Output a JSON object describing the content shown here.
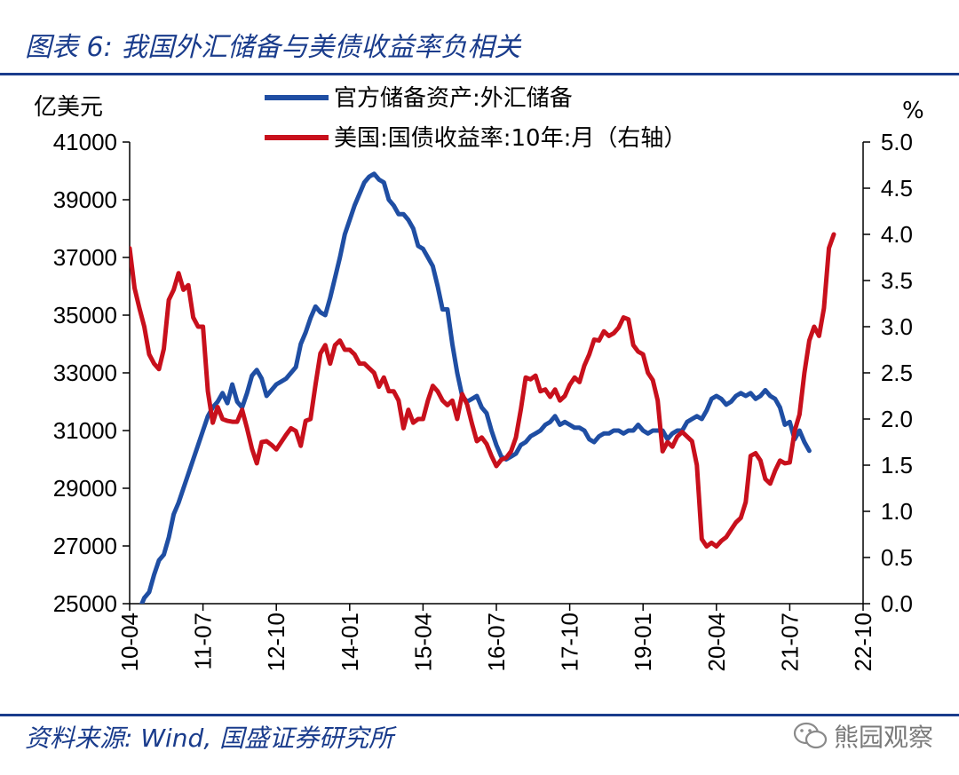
{
  "header": {
    "title": "图表 6:  我国外汇储备与美债收益率负相关"
  },
  "footer": {
    "source": "资料来源:  Wind,  国盛证券研究所",
    "watermark": "熊园观察"
  },
  "colors": {
    "reserves": "#1f4ea3",
    "yield": "#c8101c",
    "brand": "#1a3c8c"
  },
  "chart_data": {
    "type": "line",
    "title": "我国外汇储备与美债收益率负相关",
    "left_axis_label": "亿美元",
    "right_axis_label": "%",
    "left_ylim": [
      25000,
      41000
    ],
    "left_ticks": [
      25000,
      27000,
      29000,
      31000,
      33000,
      35000,
      37000,
      39000,
      41000
    ],
    "right_ylim": [
      0.0,
      5.0
    ],
    "right_ticks": [
      "0.0",
      "0.5",
      "1.0",
      "1.5",
      "2.0",
      "2.5",
      "3.0",
      "3.5",
      "4.0",
      "4.5",
      "5.0"
    ],
    "x_ticks": [
      "10-04",
      "11-07",
      "12-10",
      "14-01",
      "15-04",
      "16-07",
      "17-10",
      "19-01",
      "20-04",
      "21-07",
      "22-10"
    ],
    "x_range_months": [
      0,
      150
    ],
    "series": [
      {
        "name": "官方储备资产:外汇储备",
        "axis": "left",
        "color": "#1f4ea3",
        "points": [
          [
            0,
            24470
          ],
          [
            1,
            24540
          ],
          [
            2,
            24800
          ],
          [
            3,
            25200
          ],
          [
            4,
            25400
          ],
          [
            5,
            26000
          ],
          [
            6,
            26500
          ],
          [
            7,
            26700
          ],
          [
            8,
            27300
          ],
          [
            9,
            28100
          ],
          [
            10,
            28500
          ],
          [
            11,
            29000
          ],
          [
            12,
            29500
          ],
          [
            13,
            30000
          ],
          [
            14,
            30500
          ],
          [
            15,
            31000
          ],
          [
            16,
            31500
          ],
          [
            17,
            31800
          ],
          [
            18,
            32000
          ],
          [
            19,
            32300
          ],
          [
            20,
            31950
          ],
          [
            21,
            32600
          ],
          [
            22,
            32000
          ],
          [
            23,
            31800
          ],
          [
            24,
            32300
          ],
          [
            25,
            32900
          ],
          [
            26,
            33100
          ],
          [
            27,
            32800
          ],
          [
            28,
            32200
          ],
          [
            29,
            32400
          ],
          [
            30,
            32600
          ],
          [
            31,
            32700
          ],
          [
            32,
            32800
          ],
          [
            33,
            33000
          ],
          [
            34,
            33200
          ],
          [
            35,
            34000
          ],
          [
            36,
            34400
          ],
          [
            37,
            34900
          ],
          [
            38,
            35300
          ],
          [
            39,
            35100
          ],
          [
            40,
            35000
          ],
          [
            41,
            35600
          ],
          [
            42,
            36300
          ],
          [
            43,
            37000
          ],
          [
            44,
            37800
          ],
          [
            45,
            38300
          ],
          [
            46,
            38800
          ],
          [
            47,
            39200
          ],
          [
            48,
            39600
          ],
          [
            49,
            39800
          ],
          [
            50,
            39900
          ],
          [
            51,
            39700
          ],
          [
            52,
            39600
          ],
          [
            53,
            39000
          ],
          [
            54,
            38800
          ],
          [
            55,
            38500
          ],
          [
            56,
            38500
          ],
          [
            57,
            38300
          ],
          [
            58,
            38000
          ],
          [
            59,
            37400
          ],
          [
            60,
            37300
          ],
          [
            61,
            37000
          ],
          [
            62,
            36700
          ],
          [
            63,
            36000
          ],
          [
            64,
            35200
          ],
          [
            65,
            35200
          ],
          [
            66,
            34000
          ],
          [
            67,
            33000
          ],
          [
            68,
            32200
          ],
          [
            69,
            32000
          ],
          [
            70,
            32100
          ],
          [
            71,
            32200
          ],
          [
            72,
            31800
          ],
          [
            73,
            31600
          ],
          [
            74,
            31000
          ],
          [
            75,
            30500
          ],
          [
            76,
            30100
          ],
          [
            77,
            30000
          ],
          [
            78,
            30100
          ],
          [
            79,
            30200
          ],
          [
            80,
            30500
          ],
          [
            81,
            30600
          ],
          [
            82,
            30800
          ],
          [
            83,
            30900
          ],
          [
            84,
            31000
          ],
          [
            85,
            31200
          ],
          [
            86,
            31300
          ],
          [
            87,
            31500
          ],
          [
            88,
            31200
          ],
          [
            89,
            31300
          ],
          [
            90,
            31200
          ],
          [
            91,
            31100
          ],
          [
            92,
            31100
          ],
          [
            93,
            31000
          ],
          [
            94,
            30700
          ],
          [
            95,
            30600
          ],
          [
            96,
            30800
          ],
          [
            97,
            30900
          ],
          [
            98,
            30900
          ],
          [
            99,
            31000
          ],
          [
            100,
            31000
          ],
          [
            101,
            30900
          ],
          [
            102,
            31000
          ],
          [
            103,
            31000
          ],
          [
            104,
            31200
          ],
          [
            105,
            31000
          ],
          [
            106,
            30900
          ],
          [
            107,
            31000
          ],
          [
            108,
            31000
          ],
          [
            109,
            31000
          ],
          [
            110,
            30700
          ],
          [
            111,
            30900
          ],
          [
            112,
            31000
          ],
          [
            113,
            31000
          ],
          [
            114,
            31300
          ],
          [
            115,
            31400
          ],
          [
            116,
            31500
          ],
          [
            117,
            31400
          ],
          [
            118,
            31700
          ],
          [
            119,
            32100
          ],
          [
            120,
            32200
          ],
          [
            121,
            32100
          ],
          [
            122,
            31900
          ],
          [
            123,
            32000
          ],
          [
            124,
            32200
          ],
          [
            125,
            32300
          ],
          [
            126,
            32200
          ],
          [
            127,
            32300
          ],
          [
            128,
            32100
          ],
          [
            129,
            32200
          ],
          [
            130,
            32400
          ],
          [
            131,
            32200
          ],
          [
            132,
            32100
          ],
          [
            133,
            31800
          ],
          [
            134,
            31200
          ],
          [
            135,
            31300
          ],
          [
            136,
            30700
          ],
          [
            137,
            31000
          ],
          [
            138,
            30600
          ],
          [
            139,
            30300
          ]
        ]
      },
      {
        "name": "美国:国债收益率:10年:月（右轴）",
        "axis": "right",
        "color": "#c8101c",
        "points": [
          [
            0,
            3.85
          ],
          [
            1,
            3.42
          ],
          [
            2,
            3.2
          ],
          [
            3,
            3.0
          ],
          [
            4,
            2.7
          ],
          [
            5,
            2.6
          ],
          [
            6,
            2.54
          ],
          [
            7,
            2.76
          ],
          [
            8,
            3.29
          ],
          [
            9,
            3.4
          ],
          [
            10,
            3.58
          ],
          [
            11,
            3.4
          ],
          [
            12,
            3.45
          ],
          [
            13,
            3.1
          ],
          [
            14,
            3.0
          ],
          [
            15,
            3.0
          ],
          [
            16,
            2.3
          ],
          [
            17,
            1.96
          ],
          [
            18,
            2.13
          ],
          [
            19,
            2.0
          ],
          [
            20,
            1.98
          ],
          [
            21,
            1.97
          ],
          [
            22,
            1.97
          ],
          [
            23,
            2.1
          ],
          [
            24,
            1.9
          ],
          [
            25,
            1.68
          ],
          [
            26,
            1.52
          ],
          [
            27,
            1.75
          ],
          [
            28,
            1.76
          ],
          [
            29,
            1.72
          ],
          [
            30,
            1.67
          ],
          [
            31,
            1.75
          ],
          [
            32,
            1.83
          ],
          [
            33,
            1.9
          ],
          [
            34,
            1.87
          ],
          [
            35,
            1.71
          ],
          [
            36,
            1.98
          ],
          [
            37,
            2.0
          ],
          [
            38,
            2.37
          ],
          [
            39,
            2.71
          ],
          [
            40,
            2.8
          ],
          [
            41,
            2.6
          ],
          [
            42,
            2.8
          ],
          [
            43,
            2.85
          ],
          [
            44,
            2.75
          ],
          [
            45,
            2.75
          ],
          [
            46,
            2.7
          ],
          [
            47,
            2.6
          ],
          [
            48,
            2.6
          ],
          [
            49,
            2.55
          ],
          [
            50,
            2.5
          ],
          [
            51,
            2.35
          ],
          [
            52,
            2.45
          ],
          [
            53,
            2.3
          ],
          [
            54,
            2.3
          ],
          [
            55,
            2.2
          ],
          [
            56,
            1.9
          ],
          [
            57,
            2.1
          ],
          [
            58,
            1.96
          ],
          [
            59,
            2.0
          ],
          [
            60,
            2.0
          ],
          [
            61,
            2.2
          ],
          [
            62,
            2.36
          ],
          [
            63,
            2.3
          ],
          [
            64,
            2.2
          ],
          [
            65,
            2.15
          ],
          [
            66,
            2.2
          ],
          [
            67,
            2.0
          ],
          [
            68,
            2.27
          ],
          [
            69,
            2.16
          ],
          [
            70,
            1.95
          ],
          [
            71,
            1.76
          ],
          [
            72,
            1.8
          ],
          [
            73,
            1.73
          ],
          [
            74,
            1.6
          ],
          [
            75,
            1.49
          ],
          [
            76,
            1.56
          ],
          [
            77,
            1.58
          ],
          [
            78,
            1.65
          ],
          [
            79,
            1.8
          ],
          [
            80,
            2.1
          ],
          [
            81,
            2.45
          ],
          [
            82,
            2.43
          ],
          [
            83,
            2.47
          ],
          [
            84,
            2.3
          ],
          [
            85,
            2.32
          ],
          [
            86,
            2.24
          ],
          [
            87,
            2.32
          ],
          [
            88,
            2.2
          ],
          [
            89,
            2.25
          ],
          [
            90,
            2.37
          ],
          [
            91,
            2.45
          ],
          [
            92,
            2.4
          ],
          [
            93,
            2.58
          ],
          [
            94,
            2.7
          ],
          [
            95,
            2.86
          ],
          [
            96,
            2.85
          ],
          [
            97,
            2.95
          ],
          [
            98,
            2.9
          ],
          [
            99,
            2.93
          ],
          [
            100,
            2.99
          ],
          [
            101,
            3.1
          ],
          [
            102,
            3.08
          ],
          [
            103,
            2.8
          ],
          [
            104,
            2.73
          ],
          [
            105,
            2.7
          ],
          [
            106,
            2.5
          ],
          [
            107,
            2.42
          ],
          [
            108,
            2.2
          ],
          [
            109,
            1.65
          ],
          [
            110,
            1.75
          ],
          [
            111,
            1.7
          ],
          [
            112,
            1.81
          ],
          [
            113,
            1.86
          ],
          [
            114,
            1.81
          ],
          [
            115,
            1.76
          ],
          [
            116,
            1.5
          ],
          [
            117,
            0.7
          ],
          [
            118,
            0.62
          ],
          [
            119,
            0.66
          ],
          [
            120,
            0.62
          ],
          [
            121,
            0.68
          ],
          [
            122,
            0.72
          ],
          [
            123,
            0.8
          ],
          [
            124,
            0.88
          ],
          [
            125,
            0.93
          ],
          [
            126,
            1.1
          ],
          [
            127,
            1.6
          ],
          [
            128,
            1.63
          ],
          [
            129,
            1.55
          ],
          [
            130,
            1.35
          ],
          [
            131,
            1.3
          ],
          [
            132,
            1.44
          ],
          [
            133,
            1.55
          ],
          [
            134,
            1.52
          ],
          [
            135,
            1.53
          ],
          [
            136,
            1.87
          ],
          [
            137,
            2.05
          ],
          [
            138,
            2.5
          ],
          [
            139,
            2.85
          ],
          [
            140,
            3.0
          ],
          [
            141,
            2.9
          ],
          [
            142,
            3.2
          ],
          [
            143,
            3.85
          ],
          [
            144,
            4.0
          ]
        ]
      }
    ]
  }
}
